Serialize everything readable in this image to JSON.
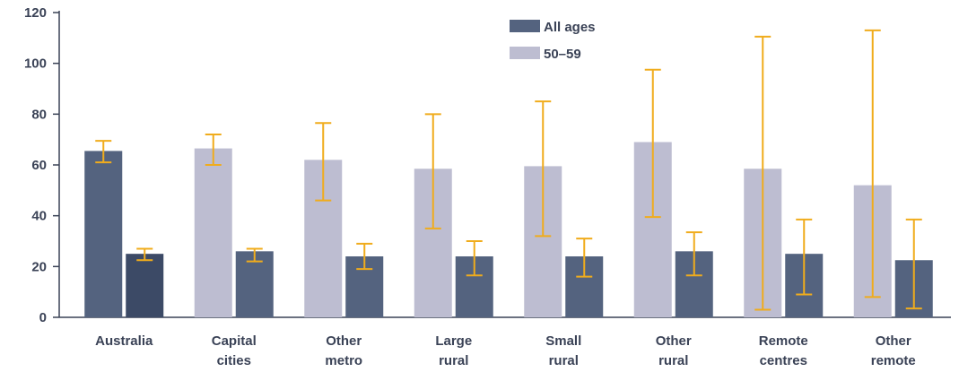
{
  "chart_data": {
    "type": "bar",
    "categories": [
      [
        "Australia"
      ],
      [
        "Capital",
        "cities"
      ],
      [
        "Other",
        "metro"
      ],
      [
        "Large",
        "rural"
      ],
      [
        "Small",
        "rural"
      ],
      [
        "Other",
        "rural"
      ],
      [
        "Remote",
        "centres"
      ],
      [
        "Other",
        "remote"
      ]
    ],
    "series": [
      {
        "name": "All ages",
        "values": [
          65.5,
          66.5,
          62,
          58.5,
          59.5,
          69,
          58.5,
          52
        ],
        "error_low": [
          61,
          60,
          46,
          35,
          32,
          39.5,
          3,
          8
        ],
        "error_high": [
          69.5,
          72,
          76.5,
          80,
          85,
          97.5,
          110.5,
          113
        ],
        "color": "#bdbdd1"
      },
      {
        "name": "50–59",
        "values": [
          25,
          26,
          24,
          24,
          24,
          26,
          25,
          22.5
        ],
        "error_low": [
          22.5,
          22,
          19,
          16.5,
          16,
          16.5,
          9,
          3.5
        ],
        "error_high": [
          27,
          27,
          29,
          30,
          31,
          33.5,
          38.5,
          38.5
        ],
        "color": "#54637f"
      }
    ],
    "legend": [
      "All ages",
      "50–59"
    ],
    "legend_colors": [
      "#54637f",
      "#bdbdd1"
    ],
    "first_category_colors": [
      "#54637f",
      "#3c4a66"
    ],
    "error_bar_color": "#f0ac1c",
    "y_ticks": [
      "0",
      "20",
      "40",
      "60",
      "80",
      "100",
      "120"
    ],
    "ylim": [
      0,
      120
    ],
    "title": "",
    "xlabel": "",
    "ylabel": "",
    "legend_position": "top-center"
  }
}
